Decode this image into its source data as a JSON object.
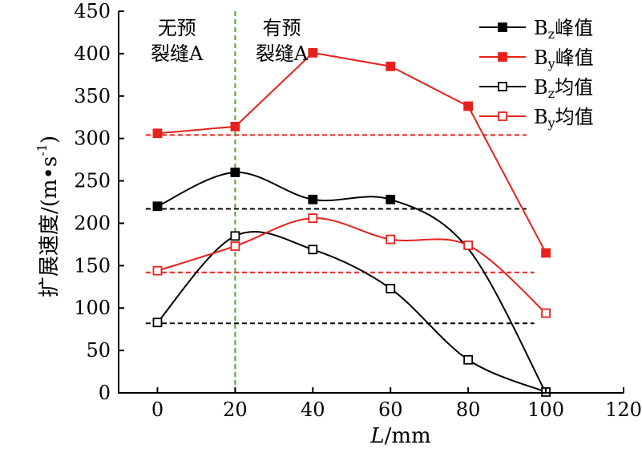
{
  "chart_data": {
    "type": "line",
    "xlabel": "L/mm",
    "xlabel_italic": "L",
    "xlabel_unit": "/mm",
    "ylabel": "扩展速度/(m•s⁻¹)",
    "ylabel_main": "扩展速度/(m•s",
    "ylabel_exp": "-1",
    "ylabel_end": ")",
    "xlim": [
      -10,
      120
    ],
    "ylim": [
      0,
      450
    ],
    "xticks": [
      "0",
      "20",
      "40",
      "60",
      "80",
      "100",
      "120"
    ],
    "yticks": [
      "0",
      "50",
      "100",
      "150",
      "200",
      "250",
      "300",
      "350",
      "400",
      "450"
    ],
    "grid": false,
    "legend_position": "top-right",
    "series": [
      {
        "name": "Bz峰值",
        "name_letter": "B",
        "name_sub": "z",
        "name_text": "峰值",
        "color": "#000000",
        "marker": "filled-square",
        "line": "smooth",
        "x": [
          0,
          20,
          40,
          60,
          80,
          100
        ],
        "values": [
          220,
          260,
          228,
          228,
          170,
          0
        ],
        "marker_x": [
          0,
          20,
          40,
          60
        ]
      },
      {
        "name": "By峰值",
        "name_letter": "B",
        "name_sub": "y",
        "name_text": "峰值",
        "color": "#e8201c",
        "marker": "filled-square",
        "line": "straight",
        "x": [
          0,
          20,
          40,
          60,
          80,
          100
        ],
        "values": [
          306,
          314,
          401,
          385,
          338,
          165
        ]
      },
      {
        "name": "Bz均值",
        "name_letter": "B",
        "name_sub": "z",
        "name_text": "均值",
        "color": "#000000",
        "marker": "open-square",
        "line": "smooth",
        "x": [
          0,
          20,
          40,
          60,
          80,
          100
        ],
        "values": [
          83,
          185,
          169,
          123,
          39,
          1
        ]
      },
      {
        "name": "By均值",
        "name_letter": "B",
        "name_sub": "y",
        "name_text": "均值",
        "color": "#e8201c",
        "marker": "open-square",
        "line": "smooth",
        "x": [
          0,
          20,
          40,
          60,
          80,
          100
        ],
        "values": [
          144,
          173,
          206,
          181,
          174,
          94
        ]
      }
    ],
    "reference_lines": [
      {
        "y": 304,
        "x_from": -3,
        "x_to": 95,
        "color": "#e8201c",
        "style": "dashed"
      },
      {
        "y": 217,
        "x_from": -3,
        "x_to": 95,
        "color": "#000000",
        "style": "dashed"
      },
      {
        "y": 142,
        "x_from": -3,
        "x_to": 97,
        "color": "#e8201c",
        "style": "dashed"
      },
      {
        "y": 82,
        "x_from": -3,
        "x_to": 97,
        "color": "#000000",
        "style": "dashed"
      }
    ],
    "divider": {
      "x": 20,
      "color": "#5aa02c",
      "style": "dashed"
    },
    "annotations": [
      {
        "lines": [
          "无预",
          "裂缝A"
        ],
        "x": 5,
        "y_top": 430
      },
      {
        "lines": [
          "有预",
          "裂缝A"
        ],
        "x": 32,
        "y_top": 430
      }
    ]
  }
}
